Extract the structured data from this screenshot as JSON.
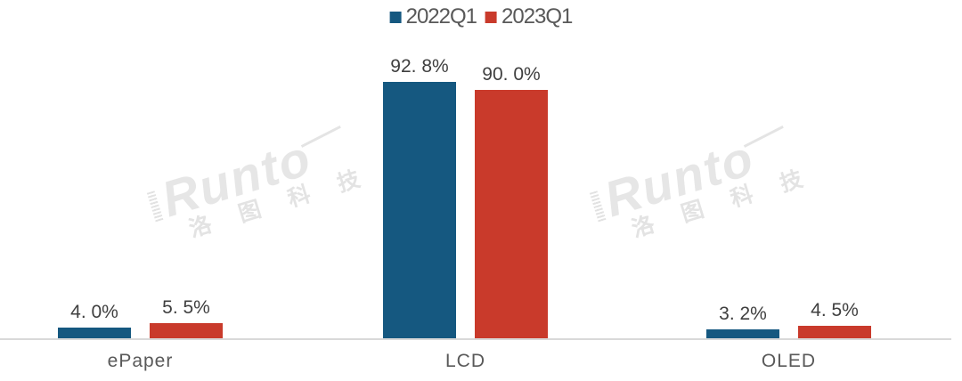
{
  "chart_data": {
    "type": "bar",
    "categories": [
      "ePaper",
      "LCD",
      "OLED"
    ],
    "series": [
      {
        "name": "2022Q1",
        "color": "#155880",
        "values": [
          4.0,
          92.8,
          3.2
        ],
        "labels": [
          "4. 0%",
          "92. 8%",
          "3. 2%"
        ]
      },
      {
        "name": "2023Q1",
        "color": "#c93a2b",
        "values": [
          5.5,
          90.0,
          4.5
        ],
        "labels": [
          "5. 5%",
          "90. 0%",
          "4. 5%"
        ]
      }
    ],
    "title": "",
    "xlabel": "",
    "ylabel": "",
    "unit": "%",
    "ylim": [
      0,
      100
    ],
    "grid": false,
    "legend_position": "top-center",
    "axis_color": "#d9d9d9",
    "label_color": "#3f3f3f",
    "tick_color": "#595959"
  },
  "watermark": {
    "brand": "Runto",
    "brand_cjk": "洛 图 科 技"
  }
}
